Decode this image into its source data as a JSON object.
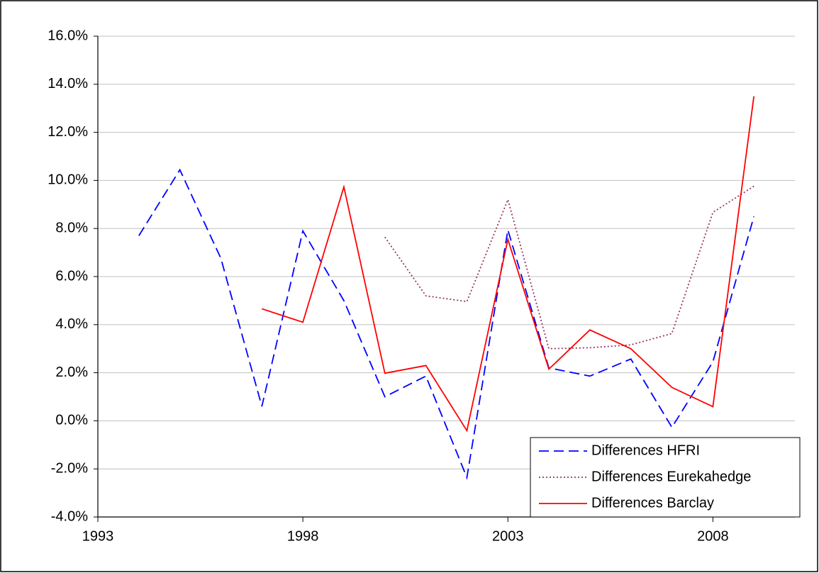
{
  "chart_data": {
    "type": "line",
    "x": [
      1994,
      1995,
      1996,
      1997,
      1998,
      1999,
      2000,
      2001,
      2002,
      2003,
      2004,
      2005,
      2006,
      2007,
      2008,
      2009
    ],
    "series": [
      {
        "name": "Differences HFRI",
        "color": "#0000ff",
        "line_style": "dashed",
        "values": [
          7.7,
          10.44,
          6.76,
          0.6,
          7.9,
          5.0,
          1.0,
          1.86,
          -2.36,
          7.94,
          2.2,
          1.86,
          2.57,
          -0.27,
          2.45,
          8.5
        ]
      },
      {
        "name": "Differences Eurekahedge",
        "color": "#993366",
        "line_style": "dotted",
        "values": [
          null,
          null,
          null,
          null,
          null,
          null,
          7.64,
          5.2,
          4.96,
          9.2,
          3.0,
          3.04,
          3.16,
          3.63,
          8.67,
          9.76
        ]
      },
      {
        "name": "Differences Barclay",
        "color": "#ff0000",
        "line_style": "solid",
        "values": [
          null,
          null,
          null,
          4.66,
          4.1,
          9.73,
          1.98,
          2.3,
          -0.41,
          7.55,
          2.15,
          3.78,
          3.0,
          1.39,
          0.59,
          13.5
        ]
      }
    ],
    "xlim": [
      1993,
      2010
    ],
    "xticks": [
      1993,
      1998,
      2003,
      2008
    ],
    "ylim": [
      -4,
      16
    ],
    "yticks": [
      {
        "value": -4,
        "label": "-4.0%"
      },
      {
        "value": -2,
        "label": "-2.0%"
      },
      {
        "value": 0,
        "label": "0.0%"
      },
      {
        "value": 2,
        "label": "2.0%"
      },
      {
        "value": 4,
        "label": "4.0%"
      },
      {
        "value": 6,
        "label": "6.0%"
      },
      {
        "value": 8,
        "label": "8.0%"
      },
      {
        "value": 10,
        "label": "10.0%"
      },
      {
        "value": 12,
        "label": "12.0%"
      },
      {
        "value": 14,
        "label": "14.0%"
      },
      {
        "value": 16,
        "label": "16.0%"
      }
    ],
    "grid": true,
    "legend": "lower right"
  }
}
